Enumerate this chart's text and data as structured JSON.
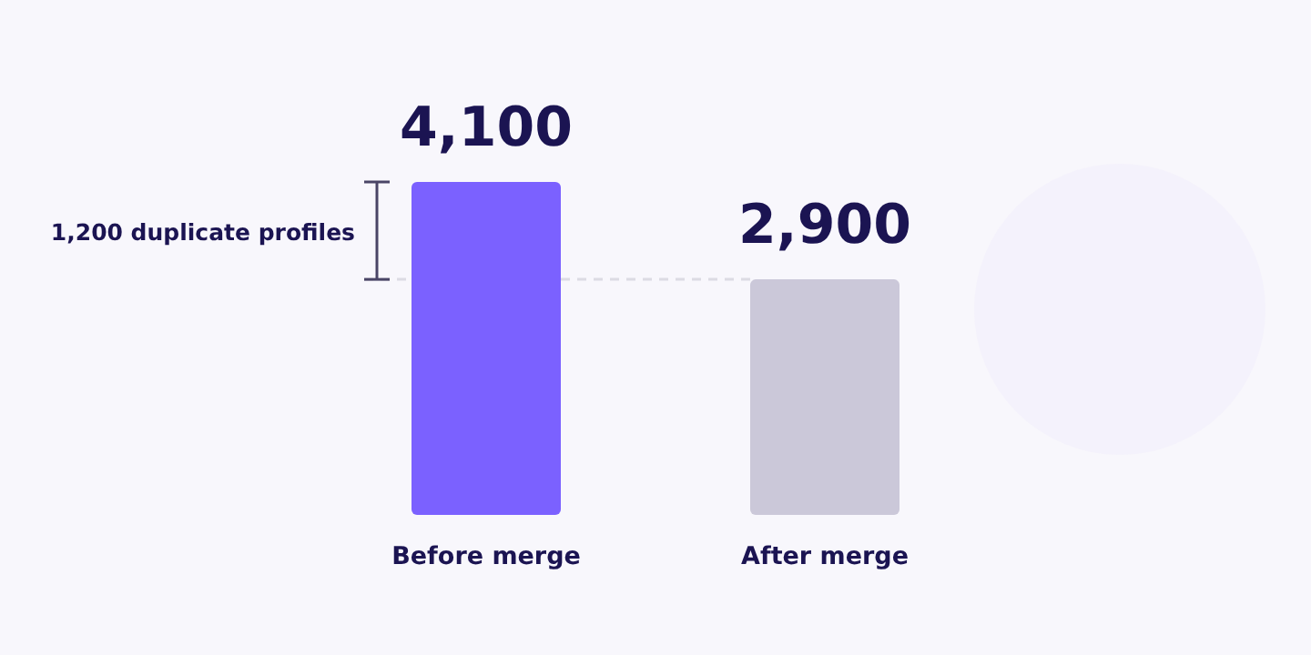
{
  "chart_data": {
    "type": "bar",
    "categories": [
      "Before merge",
      "After merge"
    ],
    "values": [
      4100,
      2900
    ],
    "colors": [
      "#7b61ff",
      "#cbc8d9"
    ],
    "data_labels": true,
    "value_labels": [
      "4,100",
      "2,900"
    ],
    "ref_lines": [
      {
        "axis": "y",
        "value": 2900,
        "color": "#dcdbe3",
        "line_style": "dashed"
      }
    ],
    "annotations": [
      "1,200 duplicate profiles"
    ]
  }
}
